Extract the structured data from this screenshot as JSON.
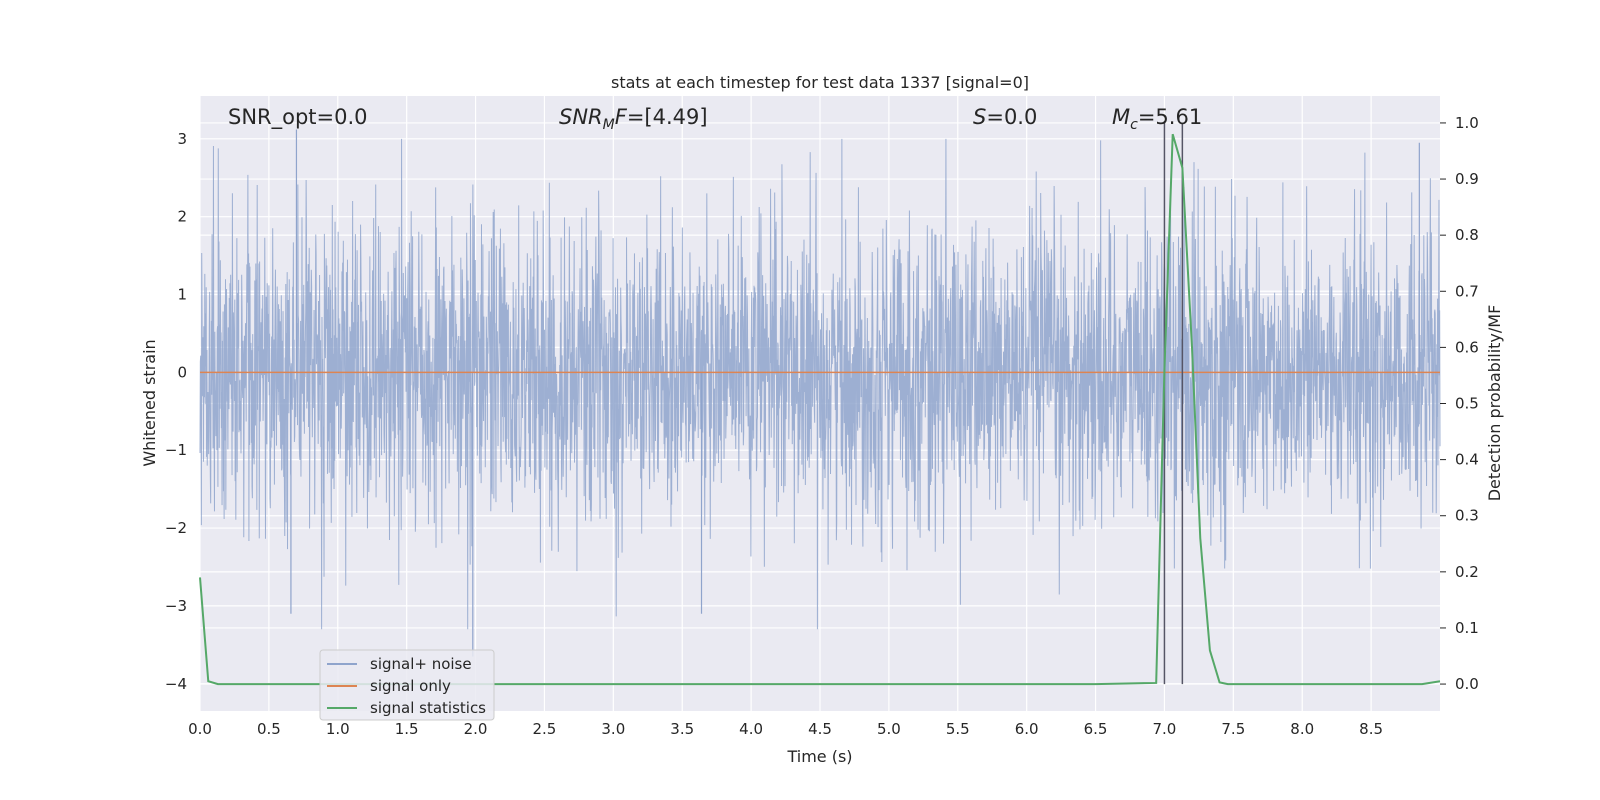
{
  "chart_data": {
    "type": "line",
    "title": "stats at each timestep for test data 1337 [signal=0]",
    "xlabel": "Time (s)",
    "ylabel": "Whitened strain",
    "ylabel_right": "Detection probability/MF",
    "xlim": [
      0.0,
      9.0
    ],
    "ylim": [
      -4.35,
      3.55
    ],
    "ylim_right": [
      -0.048,
      1.048
    ],
    "x_ticks": [
      "0.0",
      "0.5",
      "1.0",
      "1.5",
      "2.0",
      "2.5",
      "3.0",
      "3.5",
      "4.0",
      "4.5",
      "5.0",
      "5.5",
      "6.0",
      "6.5",
      "7.0",
      "7.5",
      "8.0",
      "8.5"
    ],
    "y_ticks": [
      "3",
      "2",
      "1",
      "0",
      "−1",
      "−2",
      "−3",
      "−4"
    ],
    "y_ticks_right": [
      "1.0",
      "0.9",
      "0.8",
      "0.7",
      "0.6",
      "0.5",
      "0.4",
      "0.3",
      "0.2",
      "0.1",
      "0.0"
    ],
    "grid": true,
    "legend_position": "lower-left",
    "annotations": {
      "snr_opt": "SNR_opt=0.0",
      "snr_mf_italic": "SNR",
      "snr_mf_sub": "M",
      "snr_mf_italic2": "F",
      "snr_mf_value": "=[4.49]",
      "s_italic": "S",
      "s_value": "=0.0",
      "mc_italic": "M",
      "mc_sub": "c",
      "mc_value": "=5.61"
    },
    "vlines_x": [
      7.0,
      7.13
    ],
    "series": [
      {
        "name": "signal+ noise",
        "color": "#8fa4cc",
        "description_of_values": "whitened strain noise, approx. gaussian, std ~0.95, extremes about -3.6 to 3.1",
        "extremes": [
          {
            "x": 0.7,
            "y": 3.12
          },
          {
            "x": 0.66,
            "y": -3.1
          },
          {
            "x": 1.98,
            "y": -3.65
          },
          {
            "x": 3.64,
            "y": -3.1
          },
          {
            "x": 8.85,
            "y": 2.95
          }
        ]
      },
      {
        "name": "signal only",
        "color": "#dd8452",
        "x": [
          0.0,
          9.0
        ],
        "y": [
          0.0,
          0.0
        ]
      },
      {
        "name": "signal statistics",
        "color": "#55a868",
        "axis": "right",
        "x": [
          0.0,
          0.06,
          0.13,
          0.5,
          1.0,
          2.0,
          3.0,
          4.0,
          5.0,
          6.0,
          6.5,
          6.94,
          7.0,
          7.06,
          7.13,
          7.2,
          7.26,
          7.33,
          7.4,
          7.46,
          8.0,
          8.5,
          8.87,
          9.0
        ],
        "y": [
          0.19,
          0.005,
          0.0,
          0.0,
          0.0,
          0.0,
          0.0,
          0.0,
          0.0,
          0.0,
          0.0,
          0.002,
          0.56,
          0.98,
          0.92,
          0.6,
          0.26,
          0.06,
          0.003,
          0.0,
          0.0,
          0.0,
          0.0,
          0.005
        ]
      }
    ]
  }
}
